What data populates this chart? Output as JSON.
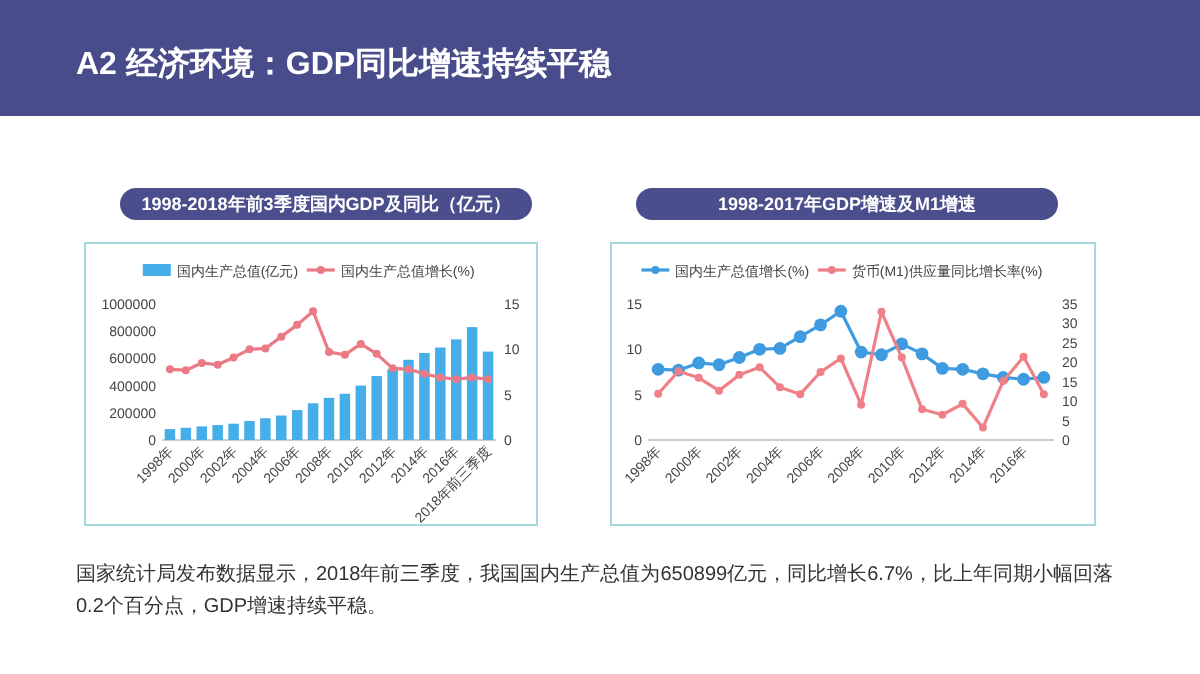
{
  "chart_data": [
    {
      "type": "other",
      "title": "A2 经济环境：GDP同比增速持续平稳",
      "annotations": [
        "国家统计局发布数据显示，2018年前三季度，我国国内生产总值为650899亿元，同比增长6.7%，比上年同期小幅回落0.2个百分点，GDP增速持续平稳。"
      ]
    },
    {
      "type": "bar",
      "title": "1998-2018年前3季度国内GDP及同比（亿元）",
      "categories": [
        "1998年",
        null,
        "2000年",
        null,
        "2002年",
        null,
        "2004年",
        null,
        "2006年",
        null,
        "2008年",
        null,
        "2010年",
        null,
        "2012年",
        null,
        "2014年",
        null,
        "2016年",
        null,
        "2018年前三季度"
      ],
      "series": [
        {
          "name": "国内生产总值(亿元)",
          "type": "bar",
          "color": "#45aee8",
          "values": [
            80000,
            90000,
            100000,
            110000,
            120000,
            140000,
            160000,
            180000,
            220000,
            270000,
            310000,
            340000,
            400000,
            470000,
            520000,
            590000,
            640000,
            680000,
            740000,
            830000,
            650000
          ]
        },
        {
          "name": "国内生产总值增长(%)",
          "type": "line",
          "axis": "y2",
          "color": "#ea7a86",
          "values": [
            7.8,
            7.7,
            8.5,
            8.3,
            9.1,
            10.0,
            10.1,
            11.4,
            12.7,
            14.2,
            9.7,
            9.4,
            10.6,
            9.5,
            7.9,
            7.8,
            7.3,
            6.9,
            6.7,
            6.9,
            6.7
          ]
        }
      ],
      "ylim": [
        0,
        1000000
      ],
      "yticks": [
        0,
        200000,
        400000,
        600000,
        800000,
        1000000
      ],
      "y2lim": [
        0,
        15
      ],
      "y2ticks": [
        0,
        5,
        10,
        15
      ],
      "legend": "top",
      "marker": "circle"
    },
    {
      "type": "line",
      "title": "1998-2017年GDP增速及M1增速",
      "categories": [
        "1998年",
        null,
        "2000年",
        null,
        "2002年",
        null,
        "2004年",
        null,
        "2006年",
        null,
        "2008年",
        null,
        "2010年",
        null,
        "2012年",
        null,
        "2014年",
        null,
        "2016年",
        null
      ],
      "series": [
        {
          "name": "国内生产总值增长(%)",
          "color": "#3f9be0",
          "values": [
            7.8,
            7.7,
            8.5,
            8.3,
            9.1,
            10.0,
            10.1,
            11.4,
            12.7,
            14.2,
            9.7,
            9.4,
            10.6,
            9.5,
            7.9,
            7.8,
            7.3,
            6.9,
            6.7,
            6.9
          ]
        },
        {
          "name": "货币(M1)供应量同比增长率(%)",
          "axis": "y2",
          "color": "#ef8088",
          "values": [
            11.9,
            17.7,
            16.0,
            12.7,
            16.8,
            18.7,
            13.6,
            11.8,
            17.5,
            21.0,
            9.1,
            33.0,
            21.2,
            7.9,
            6.5,
            9.3,
            3.2,
            15.2,
            21.4,
            11.8
          ]
        }
      ],
      "ylim": [
        0,
        15
      ],
      "yticks": [
        0,
        5,
        10,
        15
      ],
      "y2lim": [
        0,
        35
      ],
      "y2ticks": [
        0,
        5,
        10,
        15,
        20,
        25,
        30,
        35
      ],
      "legend": "top",
      "marker": "circle"
    }
  ]
}
